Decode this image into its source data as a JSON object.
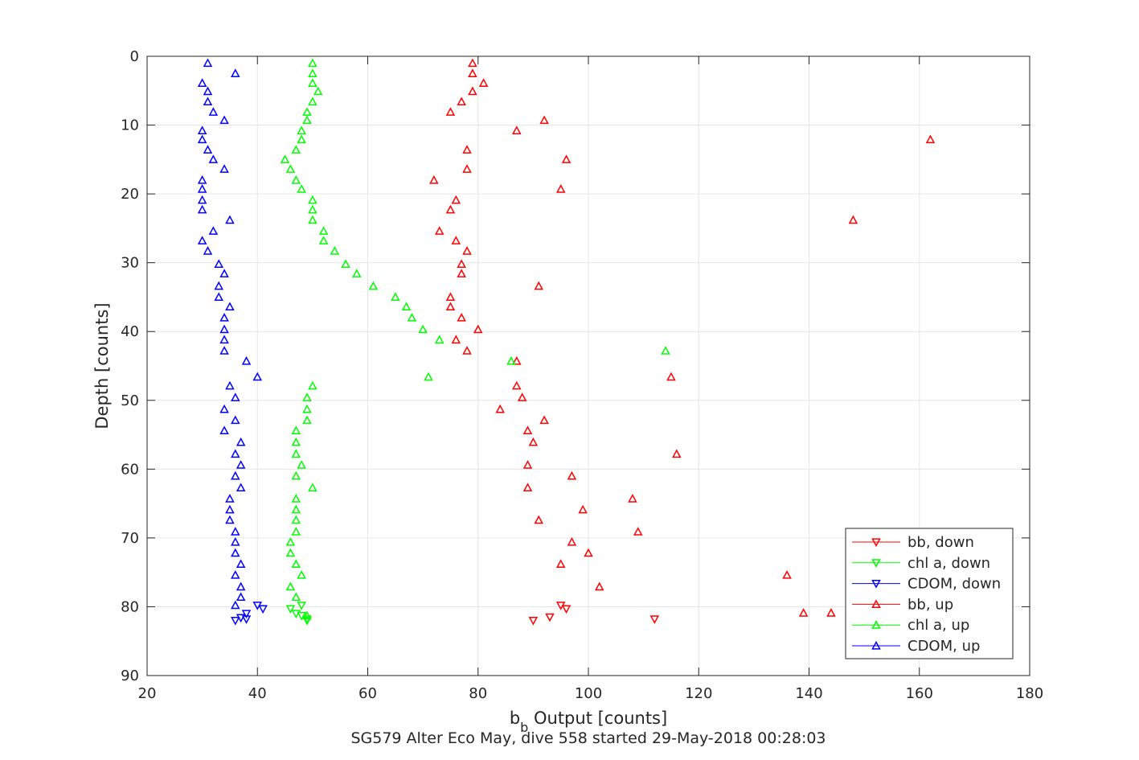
{
  "chart_data": {
    "type": "scatter",
    "xlabel_main": "b",
    "xlabel_sub": "b",
    "xlabel_rest": " Output [counts]",
    "ylabel": "Depth [counts]",
    "caption": "SG579 Alter Eco May, dive 558 started 29-May-2018 00:28:03",
    "xlim": [
      20,
      180
    ],
    "ylim": [
      0,
      90
    ],
    "y_reversed": true,
    "grid": true,
    "legend_position": "bottom-right",
    "x_ticks": [
      "20",
      "40",
      "60",
      "80",
      "100",
      "120",
      "140",
      "160",
      "180"
    ],
    "y_ticks": [
      "0",
      "10",
      "20",
      "30",
      "40",
      "50",
      "60",
      "70",
      "80",
      "90"
    ],
    "series": [
      {
        "name": "bb, down",
        "color": "#ff0000",
        "marker": "triangle-down",
        "points": [
          [
            95,
            79.8
          ],
          [
            96,
            80.3
          ],
          [
            93,
            81.5
          ],
          [
            90,
            82
          ],
          [
            112,
            81.8
          ]
        ]
      },
      {
        "name": "chl a, down",
        "color": "#00ff00",
        "marker": "triangle-down",
        "points": [
          [
            48,
            79.8
          ],
          [
            46,
            80.3
          ],
          [
            47,
            81
          ],
          [
            48,
            81.3
          ],
          [
            49,
            81.8
          ],
          [
            49,
            82
          ]
        ]
      },
      {
        "name": "CDOM, down",
        "color": "#0000ff",
        "marker": "triangle-down",
        "points": [
          [
            40,
            79.8
          ],
          [
            41,
            80.3
          ],
          [
            38,
            81
          ],
          [
            37,
            81.6
          ],
          [
            38,
            81.8
          ],
          [
            36,
            82
          ]
        ]
      },
      {
        "name": "bb, up",
        "color": "#ff0000",
        "marker": "triangle-up",
        "points": [
          [
            79,
            1
          ],
          [
            79,
            2.5
          ],
          [
            81,
            3.9
          ],
          [
            79,
            5.1
          ],
          [
            77,
            6.6
          ],
          [
            75,
            8.1
          ],
          [
            92,
            9.3
          ],
          [
            87,
            10.8
          ],
          [
            162,
            12.1
          ],
          [
            78,
            13.6
          ],
          [
            96,
            15
          ],
          [
            78,
            16.4
          ],
          [
            72,
            18
          ],
          [
            95,
            19.3
          ],
          [
            76,
            20.9
          ],
          [
            75,
            22.3
          ],
          [
            148,
            23.8
          ],
          [
            73,
            25.4
          ],
          [
            76,
            26.8
          ],
          [
            78,
            28.3
          ],
          [
            77,
            30.2
          ],
          [
            77,
            31.6
          ],
          [
            91,
            33.4
          ],
          [
            75,
            35
          ],
          [
            75,
            36.4
          ],
          [
            77,
            38
          ],
          [
            80,
            39.7
          ],
          [
            76,
            41.2
          ],
          [
            78,
            42.8
          ],
          [
            87,
            44.3
          ],
          [
            115,
            46.6
          ],
          [
            87,
            47.9
          ],
          [
            88,
            49.6
          ],
          [
            84,
            51.3
          ],
          [
            92,
            52.9
          ],
          [
            89,
            54.4
          ],
          [
            90,
            56.1
          ],
          [
            116,
            57.8
          ],
          [
            89,
            59.4
          ],
          [
            97,
            61
          ],
          [
            89,
            62.7
          ],
          [
            108,
            64.3
          ],
          [
            99,
            65.9
          ],
          [
            91,
            67.4
          ],
          [
            109,
            69.1
          ],
          [
            97,
            70.6
          ],
          [
            100,
            72.2
          ],
          [
            95,
            73.8
          ],
          [
            136,
            75.4
          ],
          [
            102,
            77.1
          ],
          [
            139,
            80.9
          ],
          [
            144,
            80.9
          ]
        ]
      },
      {
        "name": "chl a, up",
        "color": "#00ff00",
        "marker": "triangle-up",
        "points": [
          [
            50,
            1
          ],
          [
            50,
            2.5
          ],
          [
            50,
            3.9
          ],
          [
            51,
            5.1
          ],
          [
            50,
            6.6
          ],
          [
            49,
            8.1
          ],
          [
            49,
            9.3
          ],
          [
            48,
            10.8
          ],
          [
            48,
            12.1
          ],
          [
            47,
            13.6
          ],
          [
            45,
            15
          ],
          [
            46,
            16.4
          ],
          [
            47,
            18
          ],
          [
            48,
            19.3
          ],
          [
            50,
            20.9
          ],
          [
            50,
            22.3
          ],
          [
            50,
            23.8
          ],
          [
            52,
            25.4
          ],
          [
            52,
            26.8
          ],
          [
            54,
            28.3
          ],
          [
            56,
            30.2
          ],
          [
            58,
            31.6
          ],
          [
            61,
            33.4
          ],
          [
            65,
            35
          ],
          [
            67,
            36.4
          ],
          [
            68,
            38
          ],
          [
            70,
            39.7
          ],
          [
            73,
            41.2
          ],
          [
            114,
            42.8
          ],
          [
            86,
            44.3
          ],
          [
            71,
            46.6
          ],
          [
            50,
            47.9
          ],
          [
            49,
            49.6
          ],
          [
            49,
            51.3
          ],
          [
            49,
            52.9
          ],
          [
            47,
            54.4
          ],
          [
            47,
            56.1
          ],
          [
            47,
            57.8
          ],
          [
            48,
            59.4
          ],
          [
            47,
            61
          ],
          [
            50,
            62.7
          ],
          [
            47,
            64.3
          ],
          [
            47,
            65.9
          ],
          [
            47,
            67.4
          ],
          [
            47,
            69.1
          ],
          [
            46,
            70.6
          ],
          [
            46,
            72.2
          ],
          [
            47,
            73.8
          ],
          [
            48,
            75.4
          ],
          [
            46,
            77.1
          ],
          [
            47,
            78.6
          ],
          [
            49,
            81.3
          ]
        ]
      },
      {
        "name": "CDOM, up",
        "color": "#0000ff",
        "marker": "triangle-up",
        "points": [
          [
            31,
            1
          ],
          [
            36,
            2.5
          ],
          [
            30,
            3.9
          ],
          [
            31,
            5.1
          ],
          [
            31,
            6.6
          ],
          [
            32,
            8.1
          ],
          [
            34,
            9.3
          ],
          [
            30,
            10.8
          ],
          [
            30,
            12.1
          ],
          [
            31,
            13.6
          ],
          [
            32,
            15
          ],
          [
            34,
            16.4
          ],
          [
            30,
            18
          ],
          [
            30,
            19.3
          ],
          [
            30,
            20.9
          ],
          [
            30,
            22.3
          ],
          [
            35,
            23.8
          ],
          [
            32,
            25.4
          ],
          [
            30,
            26.8
          ],
          [
            31,
            28.3
          ],
          [
            33,
            30.2
          ],
          [
            34,
            31.6
          ],
          [
            33,
            33.4
          ],
          [
            33,
            35
          ],
          [
            35,
            36.4
          ],
          [
            34,
            38
          ],
          [
            34,
            39.7
          ],
          [
            34,
            41.2
          ],
          [
            34,
            42.8
          ],
          [
            38,
            44.3
          ],
          [
            40,
            46.6
          ],
          [
            35,
            47.9
          ],
          [
            36,
            49.6
          ],
          [
            34,
            51.3
          ],
          [
            36,
            52.9
          ],
          [
            34,
            54.4
          ],
          [
            37,
            56.1
          ],
          [
            36,
            57.8
          ],
          [
            37,
            59.4
          ],
          [
            36,
            61
          ],
          [
            37,
            62.7
          ],
          [
            35,
            64.3
          ],
          [
            35,
            65.9
          ],
          [
            35,
            67.4
          ],
          [
            36,
            69.1
          ],
          [
            36,
            70.6
          ],
          [
            36,
            72.2
          ],
          [
            37,
            73.8
          ],
          [
            36,
            75.4
          ],
          [
            37,
            77.1
          ],
          [
            37,
            78.6
          ],
          [
            36,
            79.8
          ]
        ]
      }
    ]
  }
}
